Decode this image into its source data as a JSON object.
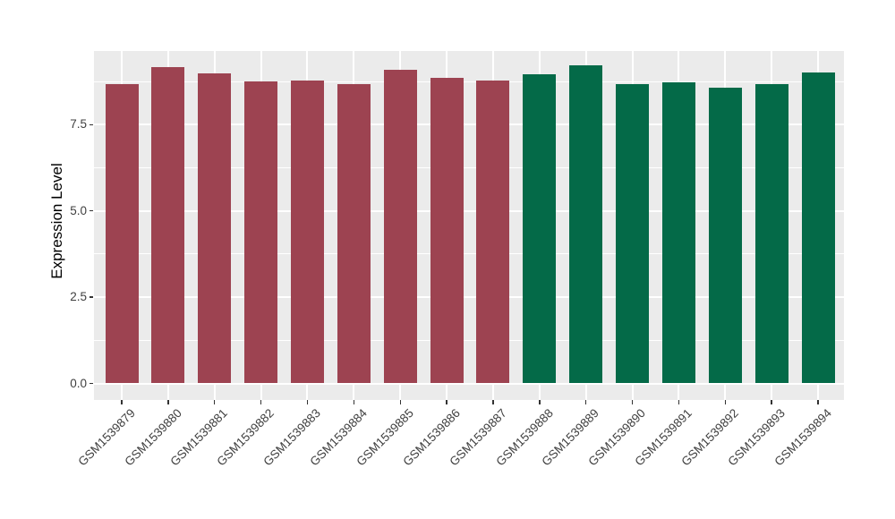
{
  "chart_data": {
    "type": "bar",
    "title": "",
    "xlabel": "",
    "ylabel": "Expression Level",
    "categories": [
      "GSM1539879",
      "GSM1539880",
      "GSM1539881",
      "GSM1539882",
      "GSM1539883",
      "GSM1539884",
      "GSM1539885",
      "GSM1539886",
      "GSM1539887",
      "GSM1539888",
      "GSM1539889",
      "GSM1539890",
      "GSM1539891",
      "GSM1539892",
      "GSM1539893",
      "GSM1539894"
    ],
    "values": [
      8.67,
      9.16,
      8.98,
      8.76,
      8.78,
      8.68,
      9.08,
      8.86,
      8.78,
      8.95,
      9.22,
      8.68,
      8.72,
      8.57,
      8.67,
      9.02
    ],
    "bar_colors": [
      "#9D4351",
      "#9D4351",
      "#9D4351",
      "#9D4351",
      "#9D4351",
      "#9D4351",
      "#9D4351",
      "#9D4351",
      "#9D4351",
      "#046A48",
      "#046A48",
      "#046A48",
      "#046A48",
      "#046A48",
      "#046A48",
      "#046A48"
    ],
    "groups": [
      {
        "color": "#9D4351",
        "start_index": 0,
        "count": 9
      },
      {
        "color": "#046A48",
        "start_index": 9,
        "count": 7
      }
    ],
    "y_ticks": [
      {
        "value": 0.0,
        "label": "0.0"
      },
      {
        "value": 2.5,
        "label": "2.5"
      },
      {
        "value": 5.0,
        "label": "5.0"
      },
      {
        "value": 7.5,
        "label": "7.5"
      }
    ],
    "y_minor_ticks": [
      1.25,
      3.75,
      6.25,
      8.75
    ],
    "ylim": [
      -0.45,
      9.65
    ],
    "grid": "on",
    "legend_position": "none",
    "panel_bg": "#EBEBEB",
    "grid_color": "#FFFFFF",
    "tick_label_color": "#404040",
    "axis_title_color": "#000000"
  }
}
